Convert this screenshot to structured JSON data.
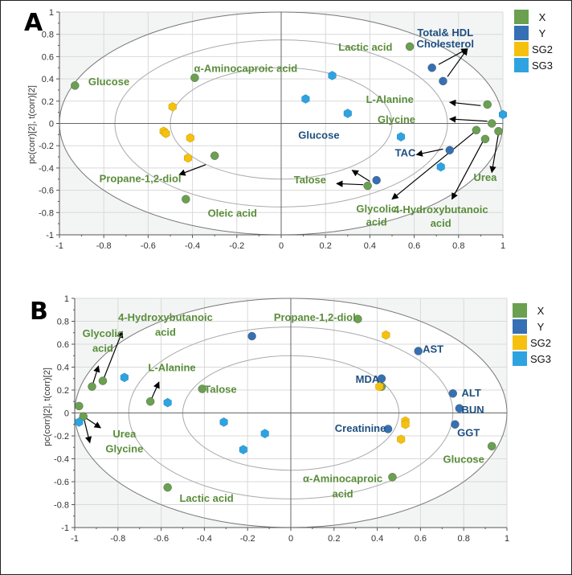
{
  "colors": {
    "X": "#6aa04f",
    "Y": "#3570b5",
    "SG2": "#f5c010",
    "SG3": "#2fa3e0",
    "x_label": "#5a8d3a",
    "y_label": "#1f4f80",
    "outside_fill": "#f3f5f5",
    "grid": "#d9d9d9",
    "ellipse": "#8a8a8a"
  },
  "chart_data": [
    {
      "type": "scatter",
      "panel": "A",
      "title": "",
      "xlabel": "",
      "ylabel": "pc(corr)[2], t(corr)[2]",
      "xlim": [
        -1,
        1
      ],
      "ylim": [
        -1,
        1
      ],
      "x_ticks": [
        "-1",
        "-0.8",
        "-0.6",
        "-0.4",
        "-0.2",
        "0",
        "0.2",
        "0.4",
        "0.6",
        "0.8",
        "1"
      ],
      "y_ticks": [
        "1",
        "0.8",
        "0.6",
        "0.4",
        "0.2",
        "0",
        "-0.2",
        "-0.4",
        "-0.6",
        "-0.8",
        "-1"
      ],
      "grid": true,
      "ellipses": [
        0.5,
        0.75,
        1.0
      ],
      "legend": {
        "placement": "right-top",
        "entries": [
          "X",
          "Y",
          "SG2",
          "SG3"
        ]
      },
      "series": [
        {
          "name": "X",
          "marker": "circle",
          "points": [
            [
              -0.93,
              0.34
            ],
            [
              -0.39,
              0.41
            ],
            [
              0.58,
              0.69
            ],
            [
              -0.3,
              -0.29
            ],
            [
              -0.43,
              -0.68
            ],
            [
              0.93,
              0.17
            ],
            [
              0.95,
              0.0
            ],
            [
              0.98,
              -0.07
            ],
            [
              0.88,
              -0.06
            ],
            [
              0.92,
              -0.14
            ],
            [
              0.39,
              -0.56
            ]
          ]
        },
        {
          "name": "Y",
          "marker": "circle",
          "points": [
            [
              0.68,
              0.5
            ],
            [
              0.73,
              0.38
            ],
            [
              0.76,
              -0.24
            ],
            [
              0.43,
              -0.51
            ]
          ]
        },
        {
          "name": "SG2",
          "marker": "hexagon",
          "points": [
            [
              -0.49,
              0.15
            ],
            [
              -0.53,
              -0.07
            ],
            [
              -0.52,
              -0.09
            ],
            [
              -0.41,
              -0.13
            ],
            [
              -0.42,
              -0.31
            ]
          ]
        },
        {
          "name": "SG3",
          "marker": "hexagon",
          "points": [
            [
              0.23,
              0.43
            ],
            [
              0.11,
              0.22
            ],
            [
              0.3,
              0.09
            ],
            [
              0.54,
              -0.12
            ],
            [
              0.72,
              -0.39
            ],
            [
              1.0,
              0.08
            ]
          ]
        }
      ],
      "annotations": [
        {
          "text": "Glucose",
          "group": "X",
          "x": -0.87,
          "y": 0.38,
          "anchor": "start"
        },
        {
          "text": "α-Aminocaproic  acid",
          "group": "X",
          "x": -0.16,
          "y": 0.5,
          "anchor": "middle"
        },
        {
          "text": "Lactic acid",
          "group": "X",
          "x": 0.38,
          "y": 0.69,
          "anchor": "middle"
        },
        {
          "text": "Total& HDL",
          "group": "Y",
          "x": 0.74,
          "y": 0.82,
          "anchor": "middle"
        },
        {
          "text": "Cholesterol",
          "group": "Y",
          "x": 0.74,
          "y": 0.72,
          "anchor": "middle"
        },
        {
          "text": "L-Alanine",
          "group": "X",
          "x": 0.49,
          "y": 0.22,
          "anchor": "middle"
        },
        {
          "text": "Glycine",
          "group": "X",
          "x": 0.52,
          "y": 0.04,
          "anchor": "middle"
        },
        {
          "text": "Glucose",
          "group": "Y",
          "x": 0.17,
          "y": -0.1,
          "anchor": "middle"
        },
        {
          "text": "TAC",
          "group": "Y",
          "x": 0.56,
          "y": -0.26,
          "anchor": "middle"
        },
        {
          "text": "Propane-1,2-diol",
          "group": "X",
          "x": -0.82,
          "y": -0.49,
          "anchor": "start"
        },
        {
          "text": "Talose",
          "group": "X",
          "x": 0.13,
          "y": -0.5,
          "anchor": "middle"
        },
        {
          "text": "Urea",
          "group": "X",
          "x": 0.92,
          "y": -0.48,
          "anchor": "middle"
        },
        {
          "text": "Oleic acid",
          "group": "X",
          "x": -0.22,
          "y": -0.8,
          "anchor": "middle"
        },
        {
          "text": "Glycolic",
          "group": "X",
          "x": 0.43,
          "y": -0.76,
          "anchor": "middle"
        },
        {
          "text": "acid",
          "group": "X",
          "x": 0.43,
          "y": -0.88,
          "anchor": "middle"
        },
        {
          "text": "4-Hydroxybutanoic",
          "group": "X",
          "x": 0.72,
          "y": -0.77,
          "anchor": "middle"
        },
        {
          "text": "acid",
          "group": "X",
          "x": 0.72,
          "y": -0.89,
          "anchor": "middle"
        }
      ],
      "arrows": [
        {
          "from": [
            0.71,
            0.53
          ],
          "to": [
            0.84,
            0.67
          ]
        },
        {
          "from": [
            0.75,
            0.42
          ],
          "to": [
            0.84,
            0.67
          ]
        },
        {
          "from": [
            0.9,
            0.16
          ],
          "to": [
            0.76,
            0.19
          ]
        },
        {
          "from": [
            0.93,
            0.02
          ],
          "to": [
            0.76,
            0.04
          ]
        },
        {
          "from": [
            0.73,
            -0.23
          ],
          "to": [
            0.61,
            -0.28
          ]
        },
        {
          "from": [
            0.4,
            -0.52
          ],
          "to": [
            0.32,
            -0.42
          ]
        },
        {
          "from": [
            0.37,
            -0.55
          ],
          "to": [
            0.25,
            -0.54
          ]
        },
        {
          "from": [
            0.87,
            -0.08
          ],
          "to": [
            0.5,
            -0.68
          ]
        },
        {
          "from": [
            0.91,
            -0.16
          ],
          "to": [
            0.77,
            -0.68
          ]
        },
        {
          "from": [
            0.98,
            -0.09
          ],
          "to": [
            0.95,
            -0.44
          ]
        },
        {
          "from": [
            -0.34,
            -0.37
          ],
          "to": [
            -0.46,
            -0.46
          ]
        }
      ]
    },
    {
      "type": "scatter",
      "panel": "B",
      "title": "",
      "xlabel": "",
      "ylabel": "pc(corr)[2], t(corr)[2]",
      "xlim": [
        -1,
        1
      ],
      "ylim": [
        -1,
        1
      ],
      "x_ticks": [
        "-1",
        "-0.8",
        "-0.6",
        "-0.4",
        "-0.2",
        "0",
        "0.2",
        "0.4",
        "0.6",
        "0.8",
        "1"
      ],
      "y_ticks": [
        "1",
        "0.8",
        "0.6",
        "0.4",
        "0.2",
        "0",
        "-0.2",
        "-0.4",
        "-0.6",
        "-0.8",
        "-1"
      ],
      "grid": true,
      "ellipses": [
        0.5,
        0.75,
        1.0
      ],
      "legend": {
        "placement": "right-top",
        "entries": [
          "X",
          "Y",
          "SG2",
          "SG3"
        ]
      },
      "series": [
        {
          "name": "X",
          "marker": "circle",
          "points": [
            [
              -0.92,
              0.23
            ],
            [
              -0.87,
              0.28
            ],
            [
              -0.98,
              0.06
            ],
            [
              -0.96,
              -0.03
            ],
            [
              -0.65,
              0.1
            ],
            [
              -0.41,
              0.21
            ],
            [
              0.31,
              0.82
            ],
            [
              0.42,
              0.23
            ],
            [
              0.93,
              -0.29
            ],
            [
              0.47,
              -0.56
            ],
            [
              -0.57,
              -0.65
            ]
          ]
        },
        {
          "name": "Y",
          "marker": "circle",
          "points": [
            [
              -0.18,
              0.67
            ],
            [
              0.59,
              0.54
            ],
            [
              0.42,
              0.3
            ],
            [
              0.75,
              0.17
            ],
            [
              0.78,
              0.04
            ],
            [
              0.76,
              -0.1
            ],
            [
              0.45,
              -0.14
            ]
          ]
        },
        {
          "name": "SG2",
          "marker": "hexagon",
          "points": [
            [
              0.44,
              0.68
            ],
            [
              0.41,
              0.23
            ],
            [
              0.53,
              -0.07
            ],
            [
              0.53,
              -0.1
            ],
            [
              0.51,
              -0.23
            ]
          ]
        },
        {
          "name": "SG3",
          "marker": "hexagon",
          "points": [
            [
              -0.77,
              0.31
            ],
            [
              -0.57,
              0.09
            ],
            [
              -0.31,
              -0.08
            ],
            [
              -0.12,
              -0.18
            ],
            [
              -0.22,
              -0.32
            ],
            [
              -0.98,
              -0.08
            ]
          ]
        }
      ],
      "annotations": [
        {
          "text": "4-Hydroxybutanoic",
          "group": "X",
          "x": -0.58,
          "y": 0.84,
          "anchor": "middle"
        },
        {
          "text": "acid",
          "group": "X",
          "x": -0.58,
          "y": 0.71,
          "anchor": "middle"
        },
        {
          "text": "Glycolic",
          "group": "X",
          "x": -0.87,
          "y": 0.7,
          "anchor": "middle"
        },
        {
          "text": "acid",
          "group": "X",
          "x": -0.87,
          "y": 0.57,
          "anchor": "middle"
        },
        {
          "text": "L-Alanine",
          "group": "X",
          "x": -0.55,
          "y": 0.4,
          "anchor": "middle"
        },
        {
          "text": "Talose",
          "group": "X",
          "x": -0.4,
          "y": 0.21,
          "anchor": "start"
        },
        {
          "text": "Propane-1,2-diol",
          "group": "X",
          "x": 0.3,
          "y": 0.84,
          "anchor": "end"
        },
        {
          "text": "AST",
          "group": "Y",
          "x": 0.61,
          "y": 0.56,
          "anchor": "start"
        },
        {
          "text": "MDA",
          "group": "Y",
          "x": 0.41,
          "y": 0.3,
          "anchor": "end"
        },
        {
          "text": "ALT",
          "group": "Y",
          "x": 0.79,
          "y": 0.18,
          "anchor": "start"
        },
        {
          "text": "BUN",
          "group": "Y",
          "x": 0.79,
          "y": 0.03,
          "anchor": "start"
        },
        {
          "text": "Creatinine",
          "group": "Y",
          "x": 0.44,
          "y": -0.13,
          "anchor": "end"
        },
        {
          "text": "GGT",
          "group": "Y",
          "x": 0.77,
          "y": -0.17,
          "anchor": "start"
        },
        {
          "text": "Urea",
          "group": "X",
          "x": -0.77,
          "y": -0.18,
          "anchor": "middle"
        },
        {
          "text": "Glycine",
          "group": "X",
          "x": -0.77,
          "y": -0.31,
          "anchor": "middle"
        },
        {
          "text": "Glucose",
          "group": "X",
          "x": 0.8,
          "y": -0.4,
          "anchor": "middle"
        },
        {
          "text": "α-Aminocaproic",
          "group": "X",
          "x": 0.24,
          "y": -0.57,
          "anchor": "middle"
        },
        {
          "text": "acid",
          "group": "X",
          "x": 0.24,
          "y": -0.7,
          "anchor": "middle"
        },
        {
          "text": "Lactic acid",
          "group": "X",
          "x": -0.39,
          "y": -0.74,
          "anchor": "middle"
        }
      ],
      "arrows": [
        {
          "from": [
            -0.92,
            0.23
          ],
          "to": [
            -0.89,
            0.41
          ]
        },
        {
          "from": [
            -0.87,
            0.28
          ],
          "to": [
            -0.78,
            0.71
          ]
        },
        {
          "from": [
            -0.65,
            0.1
          ],
          "to": [
            -0.61,
            0.27
          ]
        },
        {
          "from": [
            -0.96,
            -0.03
          ],
          "to": [
            -0.88,
            -0.13
          ]
        },
        {
          "from": [
            -0.96,
            -0.03
          ],
          "to": [
            -0.93,
            -0.26
          ]
        }
      ]
    }
  ]
}
